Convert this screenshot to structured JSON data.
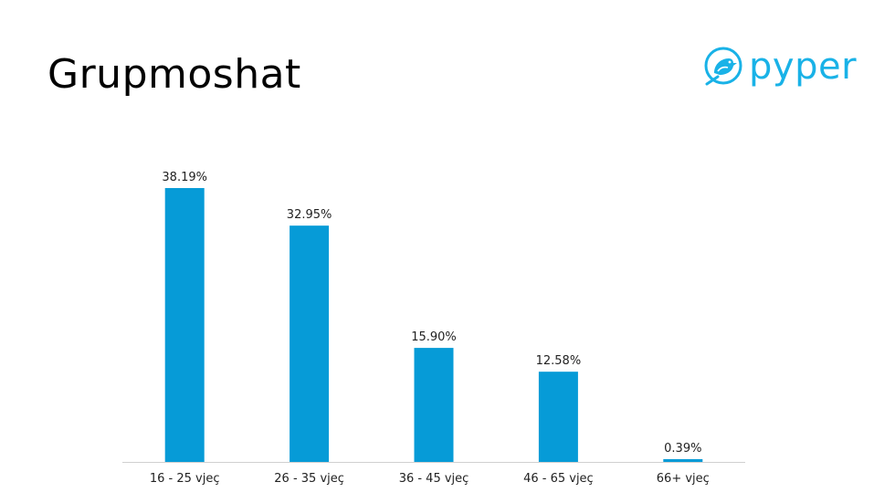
{
  "slide": {
    "title": "Grupmoshat"
  },
  "logo": {
    "text": "pyper",
    "icon": "bird-logo-icon",
    "color": "#19b2e7"
  },
  "chart_data": {
    "type": "bar",
    "categories": [
      "16 - 25 vjeç",
      "26 - 35 vjeç",
      "36 - 45 vjeç",
      "46 - 65 vjeç",
      "66+ vjeç"
    ],
    "values": [
      38.19,
      32.95,
      15.9,
      12.58,
      0.39
    ],
    "data_labels": [
      "38.19%",
      "32.95%",
      "15.90%",
      "12.58%",
      "0.39%"
    ],
    "ylim": [
      0,
      38.19
    ],
    "grid": false,
    "bar_color": "#069bd7"
  }
}
